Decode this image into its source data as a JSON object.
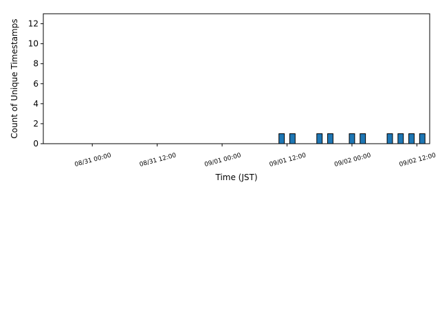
{
  "chart_data": {
    "type": "bar",
    "xlabel": "Time (JST)",
    "ylabel": "Count of Unique Timestamps",
    "ylim": [
      0,
      13
    ],
    "xlim": [
      "08/30 14:57",
      "09/02 14:22"
    ],
    "grid": false,
    "bar_color": "#1f77b4",
    "edge_color": "#000000",
    "y_ticks": [
      0,
      2,
      4,
      6,
      8,
      10,
      12
    ],
    "x_ticks": [
      {
        "value": "08/31 00:00",
        "label": "08/31 00:00"
      },
      {
        "value": "08/31 12:00",
        "label": "08/31 12:00"
      },
      {
        "value": "09/01 00:00",
        "label": "09/01 00:00"
      },
      {
        "value": "09/01 12:00",
        "label": "09/01 12:00"
      },
      {
        "value": "09/02 00:00",
        "label": "09/02 00:00"
      },
      {
        "value": "09/02 12:00",
        "label": "09/02 12:00"
      }
    ],
    "bar_width_hours": 1,
    "bars": [
      {
        "x": "09/01 11:00",
        "value": 1
      },
      {
        "x": "09/01 13:00",
        "value": 1
      },
      {
        "x": "09/01 18:00",
        "value": 1
      },
      {
        "x": "09/01 20:00",
        "value": 1
      },
      {
        "x": "09/02 00:00",
        "value": 1
      },
      {
        "x": "09/02 02:00",
        "value": 1
      },
      {
        "x": "09/02 07:00",
        "value": 1
      },
      {
        "x": "09/02 09:00",
        "value": 1
      },
      {
        "x": "09/02 11:00",
        "value": 1
      },
      {
        "x": "09/02 13:00",
        "value": 1
      }
    ]
  }
}
